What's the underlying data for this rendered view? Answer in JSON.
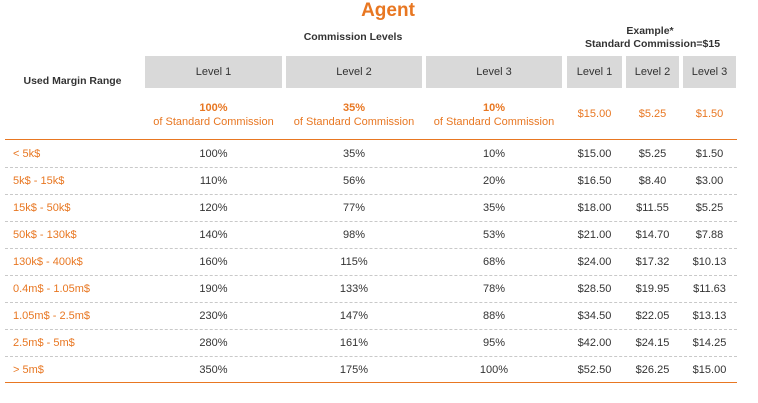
{
  "title": "Agent",
  "header": {
    "commission_levels": "Commission Levels",
    "example_line1": "Example*",
    "example_line2": "Standard Commission=$15",
    "range_label": "Used Margin Range"
  },
  "levels": [
    {
      "label": "Level 1",
      "percent": "100%",
      "sub": "of Standard Commission"
    },
    {
      "label": "Level 2",
      "percent": "35%",
      "sub": "of Standard Commission"
    },
    {
      "label": "Level 3",
      "percent": "10%",
      "sub": "of Standard Commission"
    }
  ],
  "example_levels": [
    {
      "label": "Level 1",
      "value": "$15.00"
    },
    {
      "label": "Level 2",
      "value": "$5.25"
    },
    {
      "label": "Level 3",
      "value": "$1.50"
    }
  ],
  "rows": [
    {
      "range": "< 5k$",
      "l1": "100%",
      "l2": "35%",
      "l3": "10%",
      "e1": "$15.00",
      "e2": "$5.25",
      "e3": "$1.50"
    },
    {
      "range": "5k$ - 15k$",
      "l1": "110%",
      "l2": "56%",
      "l3": "20%",
      "e1": "$16.50",
      "e2": "$8.40",
      "e3": "$3.00"
    },
    {
      "range": "15k$ - 50k$",
      "l1": "120%",
      "l2": "77%",
      "l3": "35%",
      "e1": "$18.00",
      "e2": "$11.55",
      "e3": "$5.25"
    },
    {
      "range": "50k$ - 130k$",
      "l1": "140%",
      "l2": "98%",
      "l3": "53%",
      "e1": "$21.00",
      "e2": "$14.70",
      "e3": "$7.88"
    },
    {
      "range": "130k$ - 400k$",
      "l1": "160%",
      "l2": "115%",
      "l3": "68%",
      "e1": "$24.00",
      "e2": "$17.32",
      "e3": "$10.13"
    },
    {
      "range": "0.4m$ - 1.05m$",
      "l1": "190%",
      "l2": "133%",
      "l3": "78%",
      "e1": "$28.50",
      "e2": "$19.95",
      "e3": "$11.63"
    },
    {
      "range": "1.05m$ - 2.5m$",
      "l1": "230%",
      "l2": "147%",
      "l3": "88%",
      "e1": "$34.50",
      "e2": "$22.05",
      "e3": "$13.13"
    },
    {
      "range": "2.5m$ - 5m$",
      "l1": "280%",
      "l2": "161%",
      "l3": "95%",
      "e1": "$42.00",
      "e2": "$24.15",
      "e3": "$14.25"
    },
    {
      "range": "> 5m$",
      "l1": "350%",
      "l2": "175%",
      "l3": "100%",
      "e1": "$52.50",
      "e2": "$26.25",
      "e3": "$15.00"
    }
  ],
  "colors": {
    "accent": "#e87722",
    "header_bg": "#d9d9d9",
    "text": "#333333"
  }
}
